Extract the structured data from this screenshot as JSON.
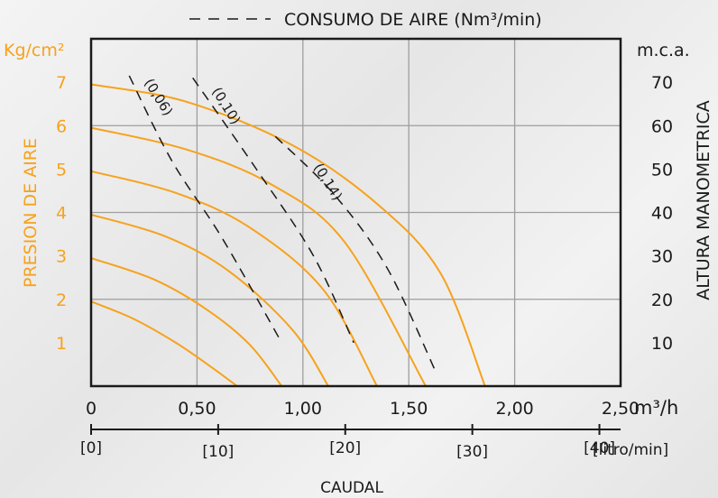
{
  "chart_data": {
    "type": "line",
    "legend": {
      "label": "CONSUMO DE AIRE (Nm³/min)",
      "style": "dashed",
      "placement": "top"
    },
    "left_axis": {
      "unit": "Kg/cm²",
      "label": "PRESION DE AIRE",
      "ticks": [
        "1",
        "2",
        "3",
        "4",
        "5",
        "6",
        "7"
      ],
      "range": [
        0,
        8
      ]
    },
    "right_axis": {
      "unit": "m.c.a.",
      "label": "ALTURA MANOMETRICA",
      "ticks": [
        "10",
        "20",
        "30",
        "40",
        "50",
        "60",
        "70"
      ],
      "range": [
        0,
        80
      ]
    },
    "x_axis": {
      "unit": "m³/h",
      "ticks": [
        "0",
        "0,50",
        "1,00",
        "1,50",
        "2,00",
        "2,50"
      ],
      "range": [
        0,
        2.5
      ]
    },
    "x2_axis": {
      "unit": "[litro/min]",
      "ticks": [
        "[0]",
        "[10]",
        "[20]",
        "[30]",
        "[40]"
      ],
      "tick_values": [
        0,
        10,
        20,
        30,
        40
      ]
    },
    "xlabel": "CAUDAL",
    "grid": true,
    "colors": {
      "pressure_curves": "#f7a21b",
      "air_lines": "#1a1a1a",
      "grid": "#9e9e9e",
      "frame": "#1a1a1a"
    },
    "pressure_curves": [
      {
        "pressure": 2,
        "points": [
          [
            0,
            1.95
          ],
          [
            0.2,
            1.55
          ],
          [
            0.4,
            1.0
          ],
          [
            0.55,
            0.5
          ],
          [
            0.69,
            0
          ]
        ]
      },
      {
        "pressure": 3,
        "points": [
          [
            0,
            2.95
          ],
          [
            0.3,
            2.45
          ],
          [
            0.55,
            1.75
          ],
          [
            0.75,
            0.95
          ],
          [
            0.9,
            0
          ]
        ]
      },
      {
        "pressure": 4,
        "points": [
          [
            0,
            3.95
          ],
          [
            0.35,
            3.45
          ],
          [
            0.65,
            2.65
          ],
          [
            0.95,
            1.3
          ],
          [
            1.12,
            0
          ]
        ]
      },
      {
        "pressure": 5,
        "points": [
          [
            0,
            4.95
          ],
          [
            0.4,
            4.45
          ],
          [
            0.75,
            3.65
          ],
          [
            1.1,
            2.2
          ],
          [
            1.35,
            0
          ]
        ]
      },
      {
        "pressure": 6,
        "points": [
          [
            0,
            5.95
          ],
          [
            0.45,
            5.45
          ],
          [
            0.85,
            4.65
          ],
          [
            1.2,
            3.3
          ],
          [
            1.58,
            0
          ]
        ]
      },
      {
        "pressure": 7,
        "points": [
          [
            0,
            6.95
          ],
          [
            0.45,
            6.55
          ],
          [
            0.95,
            5.55
          ],
          [
            1.35,
            4.2
          ],
          [
            1.65,
            2.6
          ],
          [
            1.86,
            0
          ]
        ]
      }
    ],
    "air_lines": [
      {
        "label": "(0,06)",
        "points": [
          [
            0.18,
            7.15
          ],
          [
            0.38,
            5.2
          ],
          [
            0.62,
            3.4
          ],
          [
            0.9,
            1.0
          ]
        ],
        "label_at": [
          0.3,
          6.6
        ]
      },
      {
        "label": "(0,10)",
        "points": [
          [
            0.48,
            7.1
          ],
          [
            0.78,
            5.0
          ],
          [
            1.05,
            3.0
          ],
          [
            1.24,
            1.0
          ]
        ],
        "label_at": [
          0.62,
          6.4
        ]
      },
      {
        "label": "(0,14)",
        "points": [
          [
            0.87,
            5.75
          ],
          [
            1.15,
            4.4
          ],
          [
            1.4,
            2.7
          ],
          [
            1.63,
            0.3
          ]
        ],
        "label_at": [
          1.1,
          4.65
        ]
      }
    ]
  }
}
